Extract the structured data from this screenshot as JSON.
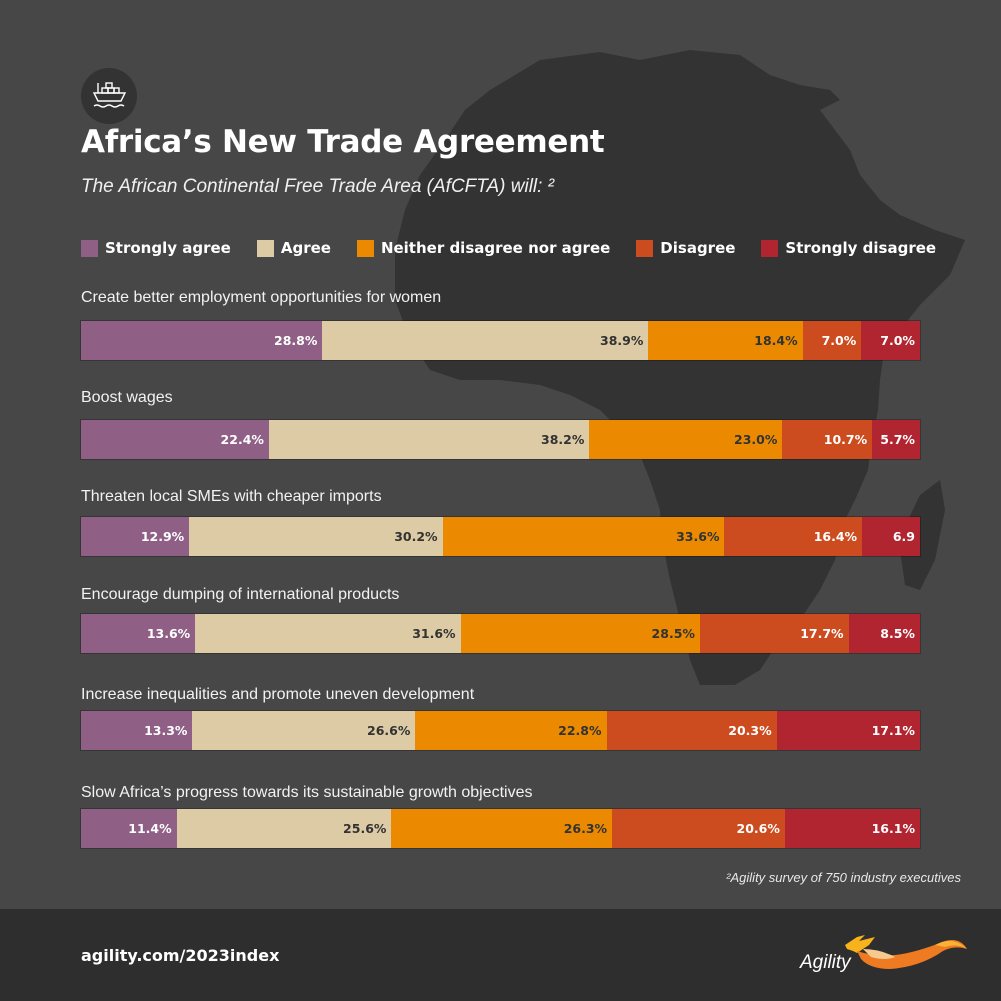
{
  "header": {
    "icon": "cargo-ship-icon",
    "title": "Africa’s New Trade Agreement",
    "subtitle": "The African Continental Free Trade Area (AfCFTA) will: ²"
  },
  "legend": [
    {
      "label": "Strongly agree",
      "color": "#8f5f86"
    },
    {
      "label": "Agree",
      "color": "#ddcba5"
    },
    {
      "label": "Neither disagree nor agree",
      "color": "#eb8a00"
    },
    {
      "label": "Disagree",
      "color": "#cc4c20"
    },
    {
      "label": "Strongly disagree",
      "color": "#b02530"
    }
  ],
  "rows": [
    {
      "label": "Create better employment opportunities for women",
      "values": [
        28.8,
        38.9,
        18.4,
        7.0,
        7.0
      ],
      "labels": [
        "28.8%",
        "38.9%",
        "18.4%",
        "7.0%",
        "7.0%"
      ]
    },
    {
      "label": "Boost wages",
      "values": [
        22.4,
        38.2,
        23.0,
        10.7,
        5.7
      ],
      "labels": [
        "22.4%",
        "38.2%",
        "23.0%",
        "10.7%",
        "5.7%"
      ]
    },
    {
      "label": "Threaten local SMEs with cheaper imports",
      "values": [
        12.9,
        30.2,
        33.6,
        16.4,
        6.9
      ],
      "labels": [
        "12.9%",
        "30.2%",
        "33.6%",
        "16.4%",
        "6.9"
      ]
    },
    {
      "label": "Encourage dumping of international products",
      "values": [
        13.6,
        31.6,
        28.5,
        17.7,
        8.5
      ],
      "labels": [
        "13.6%",
        "31.6%",
        "28.5%",
        "17.7%",
        "8.5%"
      ]
    },
    {
      "label": "Increase inequalities and promote uneven development",
      "values": [
        13.3,
        26.6,
        22.8,
        20.3,
        17.1
      ],
      "labels": [
        "13.3%",
        "26.6%",
        "22.8%",
        "20.3%",
        "17.1%"
      ]
    },
    {
      "label": "Slow Africa’s progress towards its sustainable growth objectives",
      "values": [
        11.4,
        25.6,
        26.3,
        20.6,
        16.1
      ],
      "labels": [
        "11.4%",
        "25.6%",
        "26.3%",
        "20.6%",
        "16.1%"
      ]
    }
  ],
  "footnote": "²Agility survey of 750 industry executives",
  "footer": {
    "url": "agility.com/2023index",
    "logo_text": "Agility"
  },
  "chart_data": {
    "type": "bar",
    "orientation": "horizontal-stacked-100",
    "title": "Africa’s New Trade Agreement",
    "subtitle": "The African Continental Free Trade Area (AfCFTA) will: ²",
    "categories": [
      "Create better employment opportunities for women",
      "Boost wages",
      "Threaten local SMEs with cheaper imports",
      "Encourage dumping of international products",
      "Increase inequalities and promote uneven development",
      "Slow Africa’s progress towards its sustainable growth objectives"
    ],
    "series": [
      {
        "name": "Strongly agree",
        "color": "#8f5f86",
        "values": [
          28.8,
          22.4,
          12.9,
          13.6,
          13.3,
          11.4
        ]
      },
      {
        "name": "Agree",
        "color": "#ddcba5",
        "values": [
          38.9,
          38.2,
          30.2,
          31.6,
          26.6,
          25.6
        ]
      },
      {
        "name": "Neither disagree nor agree",
        "color": "#eb8a00",
        "values": [
          18.4,
          23.0,
          33.6,
          28.5,
          22.8,
          26.3
        ]
      },
      {
        "name": "Disagree",
        "color": "#cc4c20",
        "values": [
          7.0,
          10.7,
          16.4,
          17.7,
          20.3,
          20.6
        ]
      },
      {
        "name": "Strongly disagree",
        "color": "#b02530",
        "values": [
          7.0,
          5.7,
          6.9,
          8.5,
          17.1,
          16.1
        ]
      }
    ],
    "xlabel": "",
    "ylabel": "",
    "xlim": [
      0,
      100
    ],
    "grid": false,
    "legend_position": "top",
    "data_labels": true,
    "annotations": [
      "²Agility survey of 750 industry executives"
    ]
  }
}
